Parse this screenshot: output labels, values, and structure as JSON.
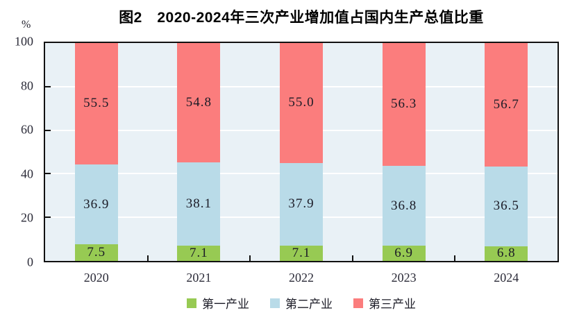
{
  "title": "图2　2020-2024年三次产业增加值占国内生产总值比重",
  "y_axis": {
    "unit": "%",
    "ticks": [
      0,
      20,
      40,
      60,
      80,
      100
    ]
  },
  "chart_data": {
    "type": "bar",
    "stacked": true,
    "title": "图2　2020-2024年三次产业增加值占国内生产总值比重",
    "categories": [
      "2020",
      "2021",
      "2022",
      "2023",
      "2024"
    ],
    "series": [
      {
        "name": "第一产业",
        "color": "#97CA53",
        "values": [
          7.5,
          7.1,
          7.1,
          6.9,
          6.8
        ]
      },
      {
        "name": "第二产业",
        "color": "#B9DBE8",
        "values": [
          36.9,
          38.1,
          37.9,
          36.8,
          36.5
        ]
      },
      {
        "name": "第三产业",
        "color": "#FB7D7D",
        "values": [
          55.5,
          54.8,
          55.0,
          56.3,
          56.7
        ]
      }
    ],
    "xlabel": "",
    "ylabel": "%",
    "ylim": [
      0,
      100
    ],
    "yticks": [
      0,
      20,
      40,
      60,
      80,
      100
    ],
    "grid": true,
    "gridline_values": [
      20,
      40,
      60,
      80
    ],
    "legend_position": "bottom",
    "plot_background": "#E9F1F6",
    "gridline_color": "#ffffff",
    "axis_color": "#111111"
  }
}
